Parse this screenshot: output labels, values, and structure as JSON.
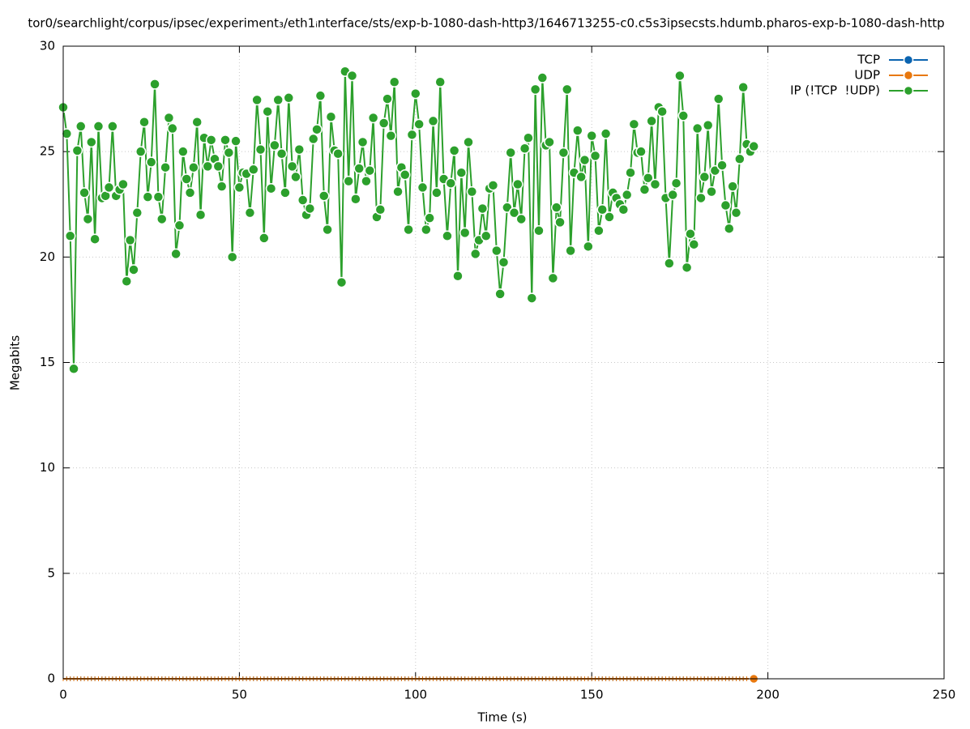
{
  "chart_data": {
    "type": "line",
    "title": "tor0/searchlight/corpus/ipsec/experiment₃/eth1ᵢnterface/sts/exp-b-1080-dash-http3/1646713255-c0.c5s3ipsecsts.hdumb.pharos-exp-b-1080-dash-http",
    "x_label": "Time (s)",
    "y_label": "Megabits",
    "xlim": [
      0,
      250
    ],
    "xticks": [
      0,
      50,
      100,
      150,
      200,
      250
    ],
    "ylim": [
      0,
      30
    ],
    "yticks": [
      0,
      5,
      10,
      15,
      20,
      25,
      30
    ],
    "grid": true,
    "legend": "top-right",
    "x": [
      0,
      1,
      2,
      3,
      4,
      5,
      6,
      7,
      8,
      9,
      10,
      11,
      12,
      13,
      14,
      15,
      16,
      17,
      18,
      19,
      20,
      21,
      22,
      23,
      24,
      25,
      26,
      27,
      28,
      29,
      30,
      31,
      32,
      33,
      34,
      35,
      36,
      37,
      38,
      39,
      40,
      41,
      42,
      43,
      44,
      45,
      46,
      47,
      48,
      49,
      50,
      51,
      52,
      53,
      54,
      55,
      56,
      57,
      58,
      59,
      60,
      61,
      62,
      63,
      64,
      65,
      66,
      67,
      68,
      69,
      70,
      71,
      72,
      73,
      74,
      75,
      76,
      77,
      78,
      79,
      80,
      81,
      82,
      83,
      84,
      85,
      86,
      87,
      88,
      89,
      90,
      91,
      92,
      93,
      94,
      95,
      96,
      97,
      98,
      99,
      100,
      101,
      102,
      103,
      104,
      105,
      106,
      107,
      108,
      109,
      110,
      111,
      112,
      113,
      114,
      115,
      116,
      117,
      118,
      119,
      120,
      121,
      122,
      123,
      124,
      125,
      126,
      127,
      128,
      129,
      130,
      131,
      132,
      133,
      134,
      135,
      136,
      137,
      138,
      139,
      140,
      141,
      142,
      143,
      144,
      145,
      146,
      147,
      148,
      149,
      150,
      151,
      152,
      153,
      154,
      155,
      156,
      157,
      158,
      159,
      160,
      161,
      162,
      163,
      164,
      165,
      166,
      167,
      168,
      169,
      170,
      171,
      172,
      173,
      174,
      175,
      176,
      177,
      178,
      179,
      180,
      181,
      182,
      183,
      184,
      185,
      186,
      187,
      188,
      189,
      190,
      191,
      192,
      193,
      194,
      195,
      196
    ],
    "series": [
      {
        "name": "TCP",
        "color": "#0b64b0",
        "values": [
          0,
          0,
          0,
          0,
          0,
          0,
          0,
          0,
          0,
          0,
          0,
          0,
          0,
          0,
          0,
          0,
          0,
          0,
          0,
          0,
          0,
          0,
          0,
          0,
          0,
          0,
          0,
          0,
          0,
          0,
          0,
          0,
          0,
          0,
          0,
          0,
          0,
          0,
          0,
          0,
          0,
          0,
          0,
          0,
          0,
          0,
          0,
          0,
          0,
          0,
          0,
          0,
          0,
          0,
          0,
          0,
          0,
          0,
          0,
          0,
          0,
          0,
          0,
          0,
          0,
          0,
          0,
          0,
          0,
          0,
          0,
          0,
          0,
          0,
          0,
          0,
          0,
          0,
          0,
          0,
          0,
          0,
          0,
          0,
          0,
          0,
          0,
          0,
          0,
          0,
          0,
          0,
          0,
          0,
          0,
          0,
          0,
          0,
          0,
          0,
          0,
          0,
          0,
          0,
          0,
          0,
          0,
          0,
          0,
          0,
          0,
          0,
          0,
          0,
          0,
          0,
          0,
          0,
          0,
          0,
          0,
          0,
          0,
          0,
          0,
          0,
          0,
          0,
          0,
          0,
          0,
          0,
          0,
          0,
          0,
          0,
          0,
          0,
          0,
          0,
          0,
          0,
          0,
          0,
          0,
          0,
          0,
          0,
          0,
          0,
          0,
          0,
          0,
          0,
          0,
          0,
          0,
          0,
          0,
          0,
          0,
          0,
          0,
          0,
          0,
          0,
          0,
          0,
          0,
          0,
          0,
          0,
          0,
          0,
          0,
          0,
          0,
          0,
          0,
          0,
          0,
          0,
          0,
          0,
          0,
          0,
          0,
          0,
          0,
          0,
          0,
          0,
          0,
          0,
          0,
          0,
          0
        ]
      },
      {
        "name": "UDP",
        "color": "#e8780e",
        "values": [
          0,
          0,
          0,
          0,
          0,
          0,
          0,
          0,
          0,
          0,
          0,
          0,
          0,
          0,
          0,
          0,
          0,
          0,
          0,
          0,
          0,
          0,
          0,
          0,
          0,
          0,
          0,
          0,
          0,
          0,
          0,
          0,
          0,
          0,
          0,
          0,
          0,
          0,
          0,
          0,
          0,
          0,
          0,
          0,
          0,
          0,
          0,
          0,
          0,
          0,
          0,
          0,
          0,
          0,
          0,
          0,
          0,
          0,
          0,
          0,
          0,
          0,
          0,
          0,
          0,
          0,
          0,
          0,
          0,
          0,
          0,
          0,
          0,
          0,
          0,
          0,
          0,
          0,
          0,
          0,
          0,
          0,
          0,
          0,
          0,
          0,
          0,
          0,
          0,
          0,
          0,
          0,
          0,
          0,
          0,
          0,
          0,
          0,
          0,
          0,
          0,
          0,
          0,
          0,
          0,
          0,
          0,
          0,
          0,
          0,
          0,
          0,
          0,
          0,
          0,
          0,
          0,
          0,
          0,
          0,
          0,
          0,
          0,
          0,
          0,
          0,
          0,
          0,
          0,
          0,
          0,
          0,
          0,
          0,
          0,
          0,
          0,
          0,
          0,
          0,
          0,
          0,
          0,
          0,
          0,
          0,
          0,
          0,
          0,
          0,
          0,
          0,
          0,
          0,
          0,
          0,
          0,
          0,
          0,
          0,
          0,
          0,
          0,
          0,
          0,
          0,
          0,
          0,
          0,
          0,
          0,
          0,
          0,
          0,
          0,
          0,
          0,
          0,
          0,
          0,
          0,
          0,
          0,
          0,
          0,
          0,
          0,
          0,
          0,
          0,
          0,
          0,
          0,
          0,
          0,
          0,
          0
        ]
      },
      {
        "name": "IP (!TCP  !UDP)",
        "color": "#2ca02c",
        "values": [
          27.1,
          25.85,
          21.0,
          14.7,
          25.05,
          26.2,
          23.05,
          21.8,
          25.45,
          20.85,
          26.2,
          22.8,
          22.9,
          23.3,
          26.2,
          22.9,
          23.2,
          23.45,
          18.85,
          20.8,
          19.4,
          22.1,
          25.0,
          26.4,
          22.85,
          24.5,
          28.2,
          22.85,
          21.8,
          24.25,
          26.6,
          26.1,
          20.15,
          21.5,
          25.0,
          23.7,
          23.05,
          24.25,
          26.4,
          22.0,
          25.65,
          24.3,
          25.55,
          24.65,
          24.3,
          23.35,
          25.55,
          24.95,
          20.0,
          25.5,
          23.3,
          24.0,
          23.95,
          22.1,
          24.15,
          27.45,
          25.1,
          20.9,
          26.9,
          23.25,
          25.3,
          27.45,
          24.9,
          23.05,
          27.55,
          24.3,
          23.8,
          25.1,
          22.7,
          22.0,
          22.3,
          25.6,
          26.05,
          27.65,
          22.9,
          21.3,
          26.65,
          25.05,
          24.9,
          18.8,
          28.8,
          23.6,
          28.6,
          22.75,
          24.2,
          25.45,
          23.6,
          24.1,
          26.6,
          21.9,
          22.25,
          26.35,
          27.5,
          25.75,
          28.3,
          23.1,
          24.25,
          23.9,
          21.3,
          25.8,
          27.75,
          26.3,
          23.3,
          21.3,
          21.85,
          26.45,
          23.05,
          28.3,
          23.7,
          21.0,
          23.5,
          25.05,
          19.1,
          24.0,
          21.15,
          25.45,
          23.1,
          20.15,
          20.8,
          22.3,
          21.0,
          23.25,
          23.4,
          20.3,
          18.25,
          19.75,
          22.35,
          24.95,
          22.1,
          23.45,
          21.8,
          25.15,
          25.65,
          18.05,
          27.95,
          21.25,
          28.5,
          25.3,
          25.45,
          19.0,
          22.35,
          21.65,
          24.95,
          27.95,
          20.3,
          24.0,
          26.0,
          23.8,
          24.6,
          20.5,
          25.75,
          24.8,
          21.25,
          22.25,
          25.85,
          21.9,
          23.05,
          22.8,
          22.5,
          22.25,
          22.95,
          24.0,
          26.3,
          24.95,
          25.0,
          23.2,
          23.75,
          26.45,
          23.45,
          27.1,
          26.9,
          22.8,
          19.7,
          22.95,
          23.5,
          28.6,
          26.7,
          19.5,
          21.1,
          20.6,
          26.1,
          22.8,
          23.8,
          26.25,
          23.1,
          24.1,
          27.5,
          24.35,
          22.45,
          21.35,
          23.35,
          22.1,
          24.65,
          28.05,
          25.35,
          25.0,
          25.25
        ]
      }
    ]
  }
}
